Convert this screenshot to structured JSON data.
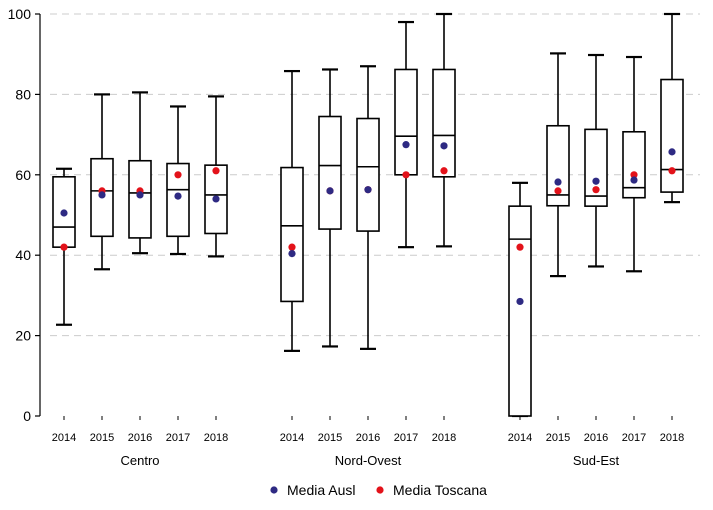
{
  "chart_data": {
    "type": "box",
    "ylim": [
      0,
      100
    ],
    "yticks": [
      0,
      20,
      40,
      60,
      80,
      100
    ],
    "grid": true,
    "legend_position": "bottom",
    "colors": {
      "ausl": "#2e2a83",
      "toscana": "#e3121a",
      "box": "#000000",
      "grid": "#cccccc"
    },
    "legend": [
      {
        "key": "ausl",
        "label": "Media Ausl"
      },
      {
        "key": "toscana",
        "label": "Media Toscana"
      }
    ],
    "groups": [
      {
        "name": "Centro",
        "boxes": [
          {
            "year": "2014",
            "min": 22.7,
            "q1": 42,
            "median": 47,
            "q3": 59.5,
            "max": 61.5,
            "ausl": 50.5,
            "toscana": 42
          },
          {
            "year": "2015",
            "min": 36.5,
            "q1": 44.7,
            "median": 56,
            "q3": 64,
            "max": 80,
            "ausl": 55,
            "toscana": 56
          },
          {
            "year": "2016",
            "min": 40.5,
            "q1": 44.3,
            "median": 55.5,
            "q3": 63.5,
            "max": 80.5,
            "ausl": 55,
            "toscana": 56
          },
          {
            "year": "2017",
            "min": 40.3,
            "q1": 44.7,
            "median": 56.3,
            "q3": 62.8,
            "max": 77,
            "ausl": 54.7,
            "toscana": 60
          },
          {
            "year": "2018",
            "min": 39.7,
            "q1": 45.4,
            "median": 55,
            "q3": 62.4,
            "max": 79.5,
            "ausl": 54,
            "toscana": 61
          }
        ]
      },
      {
        "name": "Nord-Ovest",
        "boxes": [
          {
            "year": "2014",
            "min": 16.2,
            "q1": 28.5,
            "median": 47.3,
            "q3": 61.8,
            "max": 85.8,
            "ausl": 40.4,
            "toscana": 42
          },
          {
            "year": "2015",
            "min": 17.3,
            "q1": 46.5,
            "median": 62.3,
            "q3": 74.5,
            "max": 86.2,
            "ausl": 56,
            "toscana": 56
          },
          {
            "year": "2016",
            "min": 16.7,
            "q1": 46,
            "median": 62,
            "q3": 74,
            "max": 87,
            "ausl": 56.3,
            "toscana": 56.3
          },
          {
            "year": "2017",
            "min": 42,
            "q1": 60,
            "median": 69.6,
            "q3": 86.2,
            "max": 98,
            "ausl": 67.5,
            "toscana": 60
          },
          {
            "year": "2018",
            "min": 42.2,
            "q1": 59.5,
            "median": 69.8,
            "q3": 86.2,
            "max": 100,
            "ausl": 67.2,
            "toscana": 61
          }
        ]
      },
      {
        "name": "Sud-Est",
        "boxes": [
          {
            "year": "2014",
            "min": 0,
            "q1": 0,
            "median": 44,
            "q3": 52.2,
            "max": 58,
            "ausl": 28.5,
            "toscana": 42
          },
          {
            "year": "2015",
            "min": 34.8,
            "q1": 52.3,
            "median": 55,
            "q3": 72.2,
            "max": 90.2,
            "ausl": 58.2,
            "toscana": 56
          },
          {
            "year": "2016",
            "min": 37.2,
            "q1": 52.2,
            "median": 54.7,
            "q3": 71.3,
            "max": 89.8,
            "ausl": 58.4,
            "toscana": 56.3
          },
          {
            "year": "2017",
            "min": 36,
            "q1": 54.3,
            "median": 56.8,
            "q3": 70.7,
            "max": 89.3,
            "ausl": 58.7,
            "toscana": 60
          },
          {
            "year": "2018",
            "min": 53.2,
            "q1": 55.7,
            "median": 61.3,
            "q3": 83.7,
            "max": 100,
            "ausl": 65.7,
            "toscana": 61
          }
        ]
      }
    ]
  }
}
